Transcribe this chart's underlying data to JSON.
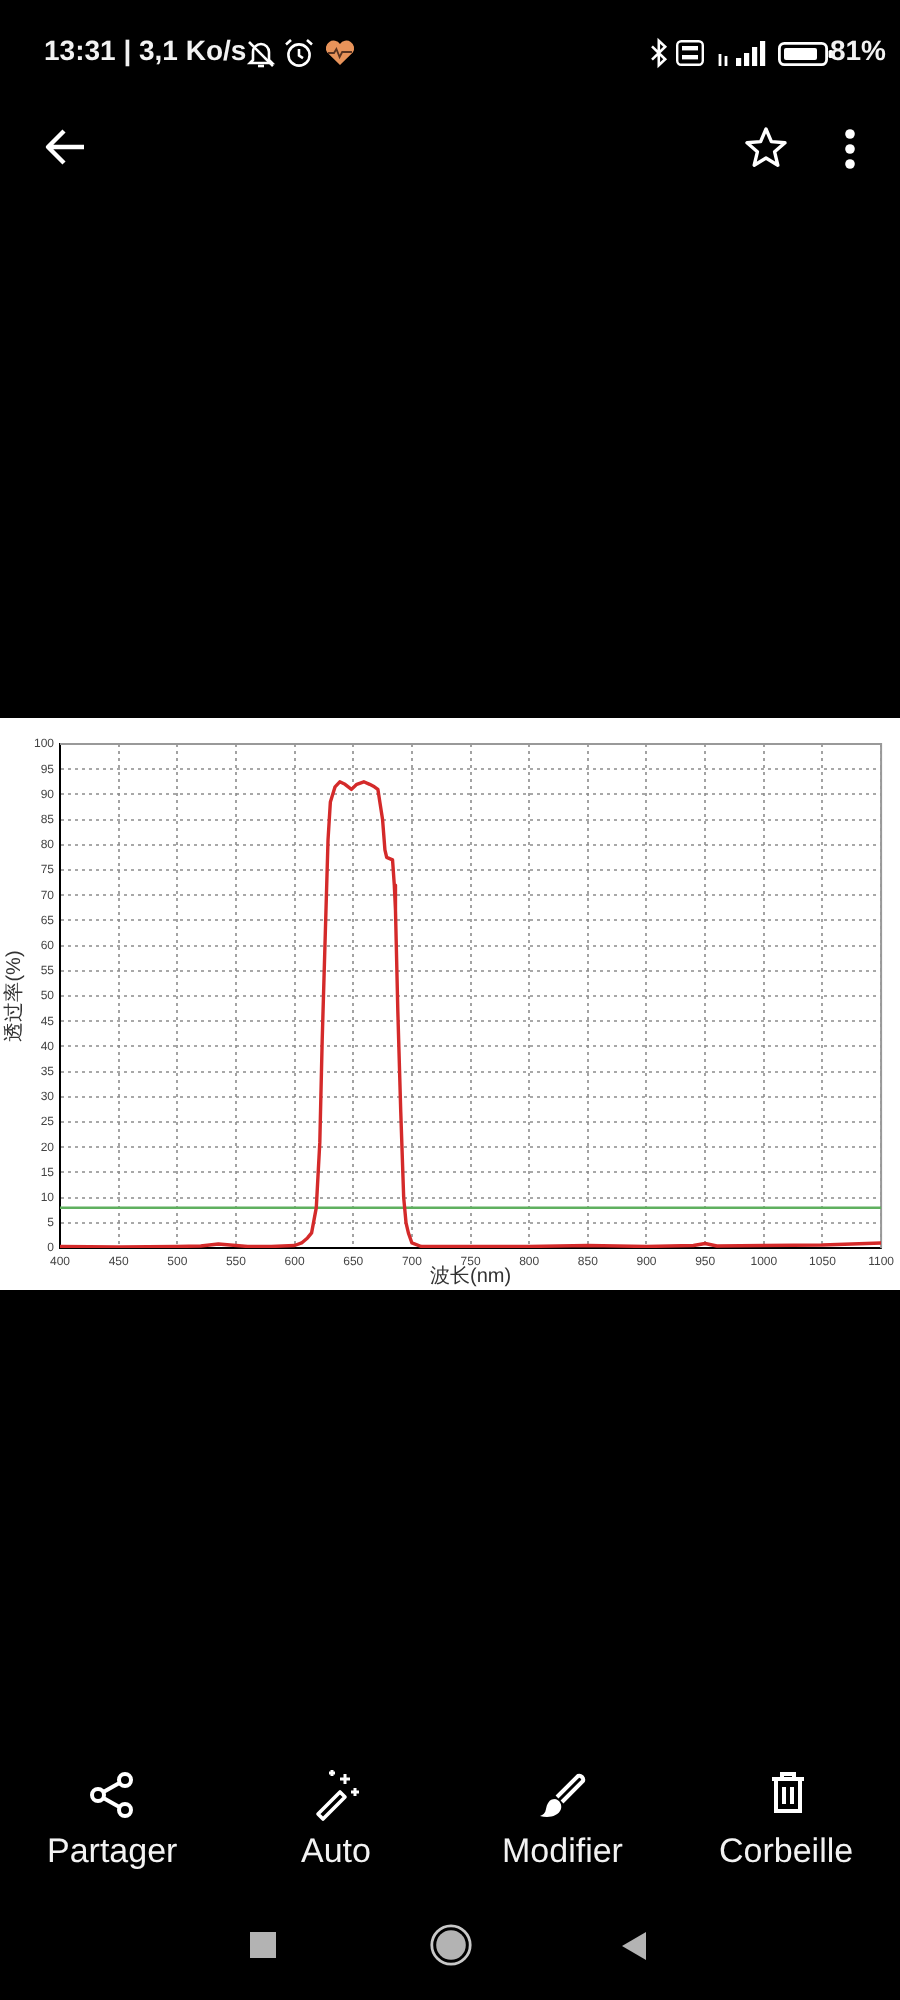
{
  "chart_data": {
    "type": "line",
    "xlabel": "波长(nm)",
    "ylabel": "透过率(%)",
    "x": [
      400,
      450,
      500,
      520,
      535,
      545,
      560,
      580,
      600,
      606,
      611,
      614.5,
      618.5,
      621.5,
      623.5,
      626,
      628.5,
      630.5,
      634.5,
      638.5,
      643,
      648.5,
      653,
      659,
      664,
      668,
      671,
      673,
      675,
      677,
      678.5,
      683.5,
      685,
      686,
      688,
      690.5,
      693,
      695,
      697,
      700,
      708,
      750,
      800,
      850,
      900,
      940,
      950,
      960,
      1000,
      1050,
      1075,
      1100
    ],
    "series": [
      {
        "color": "#d42a2a",
        "values": [
          0.3,
          0.2,
          0.3,
          0.4,
          0.8,
          0.6,
          0.3,
          0.3,
          0.5,
          1,
          2,
          3,
          8,
          21,
          41,
          61,
          81,
          88.5,
          91.5,
          92.5,
          92,
          91,
          92,
          92.5,
          92,
          91.5,
          91,
          88,
          85,
          79,
          77.5,
          77,
          72,
          67,
          47,
          27,
          10,
          5,
          3,
          1,
          0.3,
          0.3,
          0.3,
          0.5,
          0.3,
          0.5,
          0.9,
          0.4,
          0.5,
          0.6,
          0.8,
          1
        ]
      }
    ],
    "xlim": [
      400,
      1100
    ],
    "xticks": [
      400,
      450,
      500,
      550,
      600,
      650,
      700,
      750,
      800,
      850,
      900,
      950,
      1000,
      1050,
      1100
    ],
    "ylim": [
      0,
      100
    ],
    "yticks": [
      0,
      5,
      10,
      15,
      20,
      25,
      30,
      35,
      40,
      45,
      50,
      55,
      60,
      65,
      70,
      75,
      80,
      85,
      90,
      95,
      100
    ],
    "grid": true,
    "line_style": "solid",
    "ref_lines": [
      {
        "axis": "y",
        "value": 8,
        "color": "#5fb05f"
      }
    ],
    "annotations": [
      "13:31 | 3,1 Ko/s",
      "81%",
      "Partager",
      "Auto",
      "Modifier",
      "Corbeille"
    ]
  }
}
